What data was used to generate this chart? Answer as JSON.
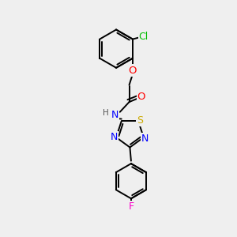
{
  "background_color": "#efefef",
  "bond_color": "#000000",
  "atom_colors": {
    "Cl": "#00bb00",
    "O": "#ff0000",
    "N": "#0000ff",
    "S": "#ccaa00",
    "F": "#ff00cc",
    "H": "#555555",
    "C": "#000000"
  },
  "font_size": 8.5,
  "line_width": 1.4
}
